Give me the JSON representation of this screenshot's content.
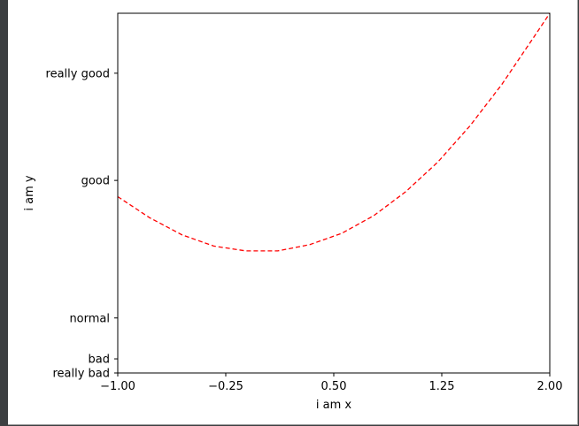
{
  "chart_data": {
    "type": "line",
    "title": "",
    "xlabel": "i am x",
    "ylabel": "i am y",
    "xlim": [
      -1.0,
      2.0
    ],
    "ylim": [
      -2.0,
      3.1
    ],
    "xticks": [
      {
        "value": -1.0,
        "label": "−1.00"
      },
      {
        "value": -0.25,
        "label": "−0.25"
      },
      {
        "value": 0.5,
        "label": "0.50"
      },
      {
        "value": 1.25,
        "label": "1.25"
      },
      {
        "value": 2.0,
        "label": "2.00"
      }
    ],
    "yticks": [
      {
        "value": -2.0,
        "label": "really bad"
      },
      {
        "value": -1.8,
        "label": "bad"
      },
      {
        "value": -1.22,
        "label": "normal"
      },
      {
        "value": 0.73,
        "label": "good"
      },
      {
        "value": 2.25,
        "label": "really good"
      }
    ],
    "grid": false,
    "series": [
      {
        "color": "#ff0000",
        "linestyle": "dashed",
        "x": [
          -1.0,
          -0.7778,
          -0.5556,
          -0.3333,
          -0.1111,
          0.1111,
          0.3333,
          0.5556,
          0.7778,
          1.0,
          1.2222,
          1.4444,
          1.6667,
          1.8889,
          2.0
        ],
        "y": [
          0.5,
          0.2,
          -0.04,
          -0.2,
          -0.27,
          -0.27,
          -0.18,
          -0.02,
          0.23,
          0.57,
          0.99,
          1.5,
          2.09,
          2.76,
          3.1
        ]
      }
    ]
  }
}
